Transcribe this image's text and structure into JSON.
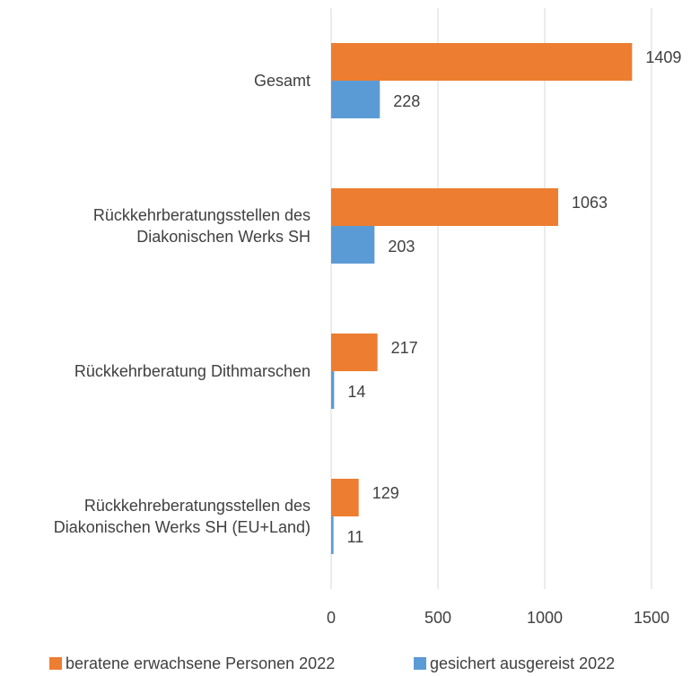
{
  "chart_data": {
    "type": "hbar",
    "categories": [
      "Gesamt",
      "Rückkehrberatungsstellen des\nDiakonischen Werks SH",
      "Rückkehrberatung Dithmarschen",
      "Rückkehreberatungsstellen des\nDiakonischen Werks SH (EU+Land)"
    ],
    "series": [
      {
        "name": "beratene erwachsene Personen 2022",
        "color": "#ED7D31",
        "values": [
          1409,
          1063,
          217,
          129
        ]
      },
      {
        "name": "gesichert ausgereist 2022",
        "color": "#5B9BD5",
        "values": [
          228,
          203,
          14,
          11
        ]
      }
    ],
    "xlim": [
      0,
      1500
    ],
    "xticks": [
      0,
      500,
      1000,
      1500
    ],
    "grid": true,
    "legend": "bottom"
  }
}
